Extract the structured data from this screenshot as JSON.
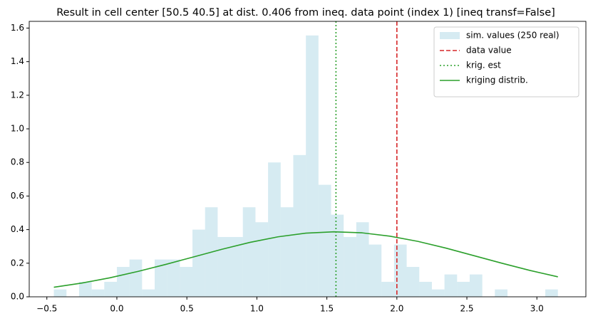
{
  "chart_data": {
    "type": "histogram",
    "title": "Result in cell center [50.5 40.5] at dist. 0.406 from ineq. data point (index 1) [ineq transf=False]",
    "bins": [
      -0.45,
      -0.36,
      -0.27,
      -0.18,
      -0.09,
      0,
      0.09,
      0.18,
      0.27,
      0.36,
      0.45,
      0.54,
      0.63,
      0.72,
      0.81,
      0.9,
      0.99,
      1.08,
      1.17,
      1.26,
      1.35,
      1.44,
      1.53,
      1.62,
      1.71,
      1.8,
      1.89,
      1.98,
      2.07,
      2.16,
      2.25,
      2.34,
      2.43,
      2.52,
      2.61,
      2.7,
      2.79,
      2.88,
      2.97,
      3.06,
      3.15
    ],
    "series": [
      {
        "name": "sim. values (250 real)",
        "color": "#add8e6",
        "alpha": 0.5,
        "values": [
          0.044,
          0,
          0.089,
          0.044,
          0.089,
          0.178,
          0.222,
          0.044,
          0.222,
          0.222,
          0.178,
          0.4,
          0.533,
          0.356,
          0.356,
          0.533,
          0.444,
          0.8,
          0.533,
          0.844,
          1.556,
          0.667,
          0.489,
          0.356,
          0.444,
          0.311,
          0.089,
          0.311,
          0.178,
          0.089,
          0.044,
          0.133,
          0.089,
          0.133,
          0,
          0.044,
          0,
          0,
          0,
          0.044
        ]
      }
    ],
    "vlines": [
      {
        "name": "data value",
        "color": "#d62728",
        "style": "dashed",
        "x": 2.0
      },
      {
        "name": "krig. est",
        "color": "#2ca02c",
        "style": "dotted",
        "x": 1.565
      }
    ],
    "curve": {
      "name": "kriging distrib.",
      "color": "#2ca02c",
      "x": [
        -0.45,
        -0.25,
        -0.05,
        0.15,
        0.35,
        0.55,
        0.75,
        0.95,
        1.15,
        1.35,
        1.55,
        1.75,
        1.95,
        2.15,
        2.35,
        2.55,
        2.75,
        2.95,
        3.15
      ],
      "values": [
        0.057,
        0.082,
        0.113,
        0.151,
        0.193,
        0.238,
        0.283,
        0.324,
        0.357,
        0.379,
        0.387,
        0.381,
        0.361,
        0.33,
        0.29,
        0.245,
        0.2,
        0.157,
        0.119
      ]
    },
    "xlim": [
      -0.626,
      3.35
    ],
    "ylim": [
      0,
      1.64
    ],
    "xticks": [
      {
        "value": -0.5,
        "label": "−0.5"
      },
      {
        "value": 0,
        "label": "0.0"
      },
      {
        "value": 0.5,
        "label": "0.5"
      },
      {
        "value": 1,
        "label": "1.0"
      },
      {
        "value": 1.5,
        "label": "1.5"
      },
      {
        "value": 2,
        "label": "2.0"
      },
      {
        "value": 2.5,
        "label": "2.5"
      },
      {
        "value": 3,
        "label": "3.0"
      }
    ],
    "yticks": [
      {
        "value": 0,
        "label": "0.0"
      },
      {
        "value": 0.2,
        "label": "0.2"
      },
      {
        "value": 0.4,
        "label": "0.4"
      },
      {
        "value": 0.6,
        "label": "0.6"
      },
      {
        "value": 0.8,
        "label": "0.8"
      },
      {
        "value": 1.0,
        "label": "1.0"
      },
      {
        "value": 1.2,
        "label": "1.2"
      },
      {
        "value": 1.4,
        "label": "1.4"
      },
      {
        "value": 1.6,
        "label": "1.6"
      }
    ],
    "legend": "upper right",
    "grid": false
  }
}
